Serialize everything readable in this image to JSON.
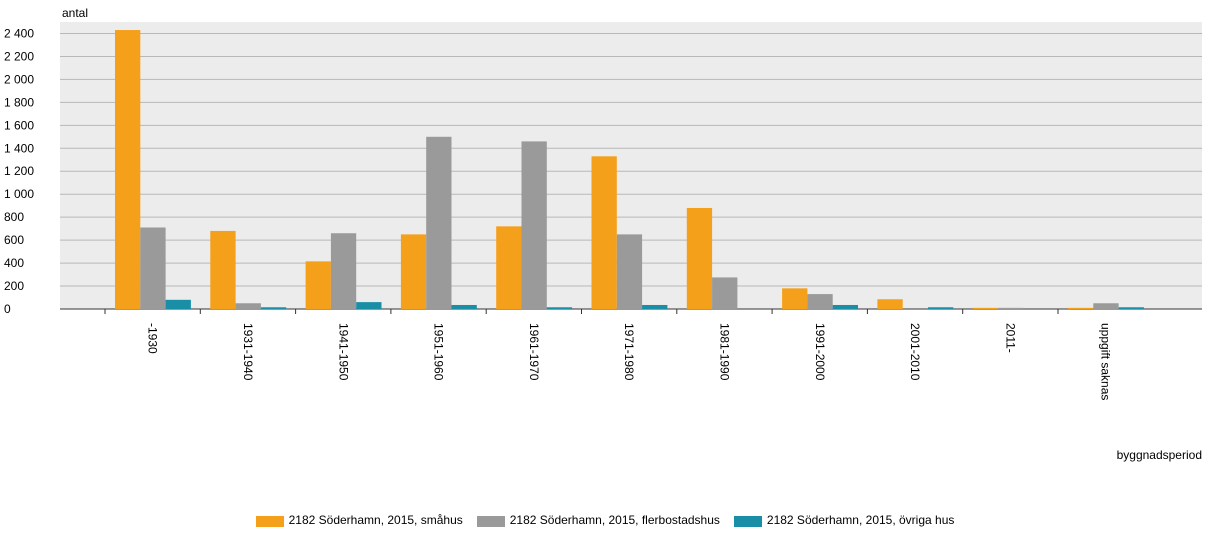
{
  "chart_data": {
    "type": "bar",
    "y_label": "antal",
    "x_label": "byggnadsperiod",
    "categories": [
      "-1930",
      "1931-1940",
      "1941-1950",
      "1951-1960",
      "1961-1970",
      "1971-1980",
      "1981-1990",
      "1991-2000",
      "2001-2010",
      "2011-",
      "uppgift saknas"
    ],
    "series": [
      {
        "name": "2182 Söderhamn, 2015, småhus",
        "color": "#f5a01a",
        "values": [
          2430,
          680,
          415,
          650,
          720,
          1330,
          880,
          180,
          85,
          10,
          10
        ]
      },
      {
        "name": "2182 Söderhamn, 2015, flerbostadshus",
        "color": "#9a9a9a",
        "values": [
          710,
          50,
          660,
          1500,
          1460,
          650,
          275,
          130,
          0,
          10,
          50
        ]
      },
      {
        "name": "2182 Söderhamn, 2015, övriga hus",
        "color": "#1a8ea6",
        "values": [
          80,
          15,
          60,
          35,
          15,
          35,
          0,
          35,
          15,
          0,
          15
        ]
      }
    ],
    "ylim": [
      0,
      2500
    ],
    "yticks": [
      0,
      200,
      400,
      600,
      800,
      {
        "value": 1000,
        "label": "1 000"
      },
      {
        "value": 1200,
        "label": "1 200"
      },
      {
        "value": 1400,
        "label": "1 400"
      },
      {
        "value": 1600,
        "label": "1 600"
      },
      {
        "value": 1800,
        "label": "1 800"
      },
      {
        "value": 2000,
        "label": "2 000"
      },
      {
        "value": 2200,
        "label": "2 200"
      },
      {
        "value": 2400,
        "label": "2 400"
      }
    ],
    "grid": true
  }
}
